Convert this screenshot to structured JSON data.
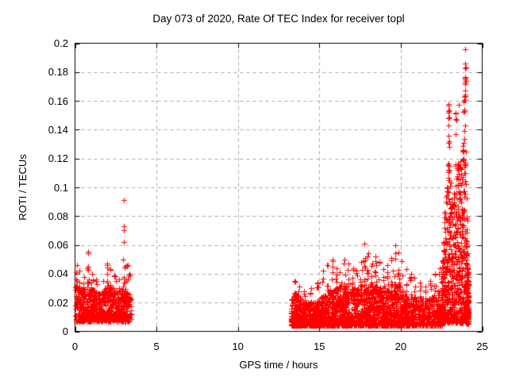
{
  "chart_data": {
    "type": "scatter",
    "title": "Day 073 of 2020, Rate Of TEC Index for receiver topl",
    "xlabel": "GPS time / hours",
    "ylabel": "ROTI / TECUs",
    "xlim": [
      0,
      25
    ],
    "ylim": [
      0,
      0.2
    ],
    "xticks": {
      "values": [
        0,
        5,
        10,
        15,
        20,
        25
      ],
      "labels": [
        "0",
        "5",
        "10",
        "15",
        "20",
        "25"
      ]
    },
    "yticks": {
      "values": [
        0,
        0.02,
        0.04,
        0.06,
        0.08,
        0.1,
        0.12,
        0.14,
        0.16,
        0.18,
        0.2
      ],
      "labels": [
        "0",
        "0.02",
        "0.04",
        "0.06",
        "0.08",
        "0.1",
        "0.12",
        "0.14",
        "0.16",
        "0.18",
        "0.2"
      ]
    },
    "grid": true,
    "grid_color": "#a8a8a8",
    "frame_color": "#000000",
    "marker": {
      "shape": "plus",
      "color": "#ff0000",
      "size": 7
    },
    "series_name": "ROTI",
    "seed": 73,
    "clusters": [
      {
        "name": "morning-cluster",
        "t0": 0.02,
        "t1": 3.45,
        "n": 720,
        "v_lo": 0.007,
        "power": 1.55,
        "env": [
          [
            0.02,
            0.034
          ],
          [
            0.4,
            0.03
          ],
          [
            0.9,
            0.032
          ],
          [
            1.5,
            0.026
          ],
          [
            2.0,
            0.032
          ],
          [
            2.4,
            0.03
          ],
          [
            2.8,
            0.028
          ],
          [
            3.1,
            0.032
          ],
          [
            3.45,
            0.024
          ]
        ]
      },
      {
        "name": "afternoon-cluster",
        "t0": 13.25,
        "t1": 21.0,
        "n": 1900,
        "v_lo": 0.004,
        "power": 1.9,
        "env": [
          [
            13.25,
            0.022
          ],
          [
            13.5,
            0.028
          ],
          [
            13.9,
            0.022
          ],
          [
            14.6,
            0.02
          ],
          [
            15.1,
            0.024
          ],
          [
            15.8,
            0.03
          ],
          [
            16.5,
            0.032
          ],
          [
            17.2,
            0.03
          ],
          [
            17.8,
            0.034
          ],
          [
            18.5,
            0.032
          ],
          [
            19.2,
            0.03
          ],
          [
            19.8,
            0.034
          ],
          [
            20.3,
            0.028
          ],
          [
            21.0,
            0.024
          ]
        ]
      },
      {
        "name": "pre-storm",
        "t0": 21.0,
        "t1": 22.55,
        "n": 300,
        "v_lo": 0.004,
        "power": 1.9,
        "env": [
          [
            21.0,
            0.024
          ],
          [
            21.6,
            0.022
          ],
          [
            22.1,
            0.026
          ],
          [
            22.55,
            0.03
          ]
        ]
      },
      {
        "name": "storm-enhancement",
        "t0": 22.5,
        "t1": 24.1,
        "n": 640,
        "v_lo": 0.006,
        "power": 1.6,
        "env": [
          [
            22.5,
            0.04
          ],
          [
            22.7,
            0.085
          ],
          [
            22.9,
            0.12
          ],
          [
            23.0,
            0.115
          ],
          [
            23.15,
            0.09
          ],
          [
            23.3,
            0.1
          ],
          [
            23.45,
            0.115
          ],
          [
            23.6,
            0.12
          ],
          [
            23.75,
            0.125
          ],
          [
            23.85,
            0.135
          ],
          [
            23.92,
            0.125
          ],
          [
            24.0,
            0.115
          ],
          [
            24.1,
            0.08
          ]
        ]
      },
      {
        "name": "day-end-tail",
        "t0": 24.02,
        "t1": 24.17,
        "n": 150,
        "v_lo": 0.005,
        "power": 1.7,
        "env": [
          [
            24.02,
            0.07
          ],
          [
            24.08,
            0.05
          ],
          [
            24.17,
            0.035
          ]
        ]
      }
    ],
    "spikes": [
      [
        0.07,
        0.046,
        7
      ],
      [
        0.28,
        0.042,
        5
      ],
      [
        0.55,
        0.038,
        4
      ],
      [
        0.82,
        0.054,
        8
      ],
      [
        1.05,
        0.04,
        5
      ],
      [
        1.3,
        0.036,
        4
      ],
      [
        1.75,
        0.035,
        4
      ],
      [
        2.0,
        0.047,
        9
      ],
      [
        2.2,
        0.043,
        6
      ],
      [
        2.45,
        0.039,
        5
      ],
      [
        2.7,
        0.036,
        4
      ],
      [
        3.0,
        0.05,
        10
      ],
      [
        3.18,
        0.046,
        7
      ],
      [
        3.32,
        0.04,
        5
      ],
      [
        13.5,
        0.035,
        5
      ],
      [
        13.75,
        0.031,
        4
      ],
      [
        14.1,
        0.028,
        4
      ],
      [
        14.5,
        0.03,
        4
      ],
      [
        14.9,
        0.034,
        5
      ],
      [
        15.2,
        0.042,
        6
      ],
      [
        15.5,
        0.046,
        7
      ],
      [
        15.8,
        0.05,
        8
      ],
      [
        16.05,
        0.044,
        6
      ],
      [
        16.3,
        0.041,
        5
      ],
      [
        16.55,
        0.05,
        8
      ],
      [
        16.8,
        0.047,
        6
      ],
      [
        17.05,
        0.044,
        6
      ],
      [
        17.3,
        0.042,
        5
      ],
      [
        17.55,
        0.048,
        7
      ],
      [
        17.78,
        0.061,
        9
      ],
      [
        17.95,
        0.054,
        7
      ],
      [
        18.2,
        0.047,
        6
      ],
      [
        18.45,
        0.052,
        7
      ],
      [
        18.7,
        0.048,
        6
      ],
      [
        18.95,
        0.043,
        5
      ],
      [
        19.2,
        0.046,
        6
      ],
      [
        19.45,
        0.051,
        7
      ],
      [
        19.65,
        0.06,
        9
      ],
      [
        19.85,
        0.055,
        7
      ],
      [
        20.1,
        0.049,
        6
      ],
      [
        20.35,
        0.043,
        5
      ],
      [
        20.6,
        0.04,
        5
      ],
      [
        20.85,
        0.037,
        4
      ],
      [
        21.2,
        0.034,
        4
      ],
      [
        21.5,
        0.031,
        4
      ],
      [
        21.8,
        0.035,
        4
      ],
      [
        22.1,
        0.04,
        5
      ],
      [
        22.35,
        0.044,
        5
      ],
      [
        22.95,
        0.158,
        7,
        0.11
      ],
      [
        23.38,
        0.152,
        5,
        0.1
      ],
      [
        23.9,
        0.163,
        6,
        0.12
      ],
      [
        23.96,
        0.196,
        9,
        0.152
      ],
      [
        23.94,
        0.176,
        6,
        0.158
      ]
    ],
    "outliers": [
      [
        2.98,
        0.091
      ],
      [
        2.98,
        0.073
      ],
      [
        3.0,
        0.0705
      ],
      [
        2.99,
        0.062
      ],
      [
        0.82,
        0.0555
      ],
      [
        3.1,
        0.0455
      ],
      [
        23.9,
        0.1605
      ],
      [
        23.55,
        0.1575
      ],
      [
        22.93,
        0.157
      ],
      [
        22.95,
        0.152
      ],
      [
        23.37,
        0.151
      ],
      [
        22.97,
        0.1485
      ],
      [
        23.42,
        0.147
      ],
      [
        23.93,
        0.143
      ],
      [
        23.91,
        0.139
      ],
      [
        22.94,
        0.136
      ],
      [
        22.96,
        0.132
      ],
      [
        23.0,
        0.128
      ],
      [
        24.0,
        0.125
      ]
    ]
  }
}
